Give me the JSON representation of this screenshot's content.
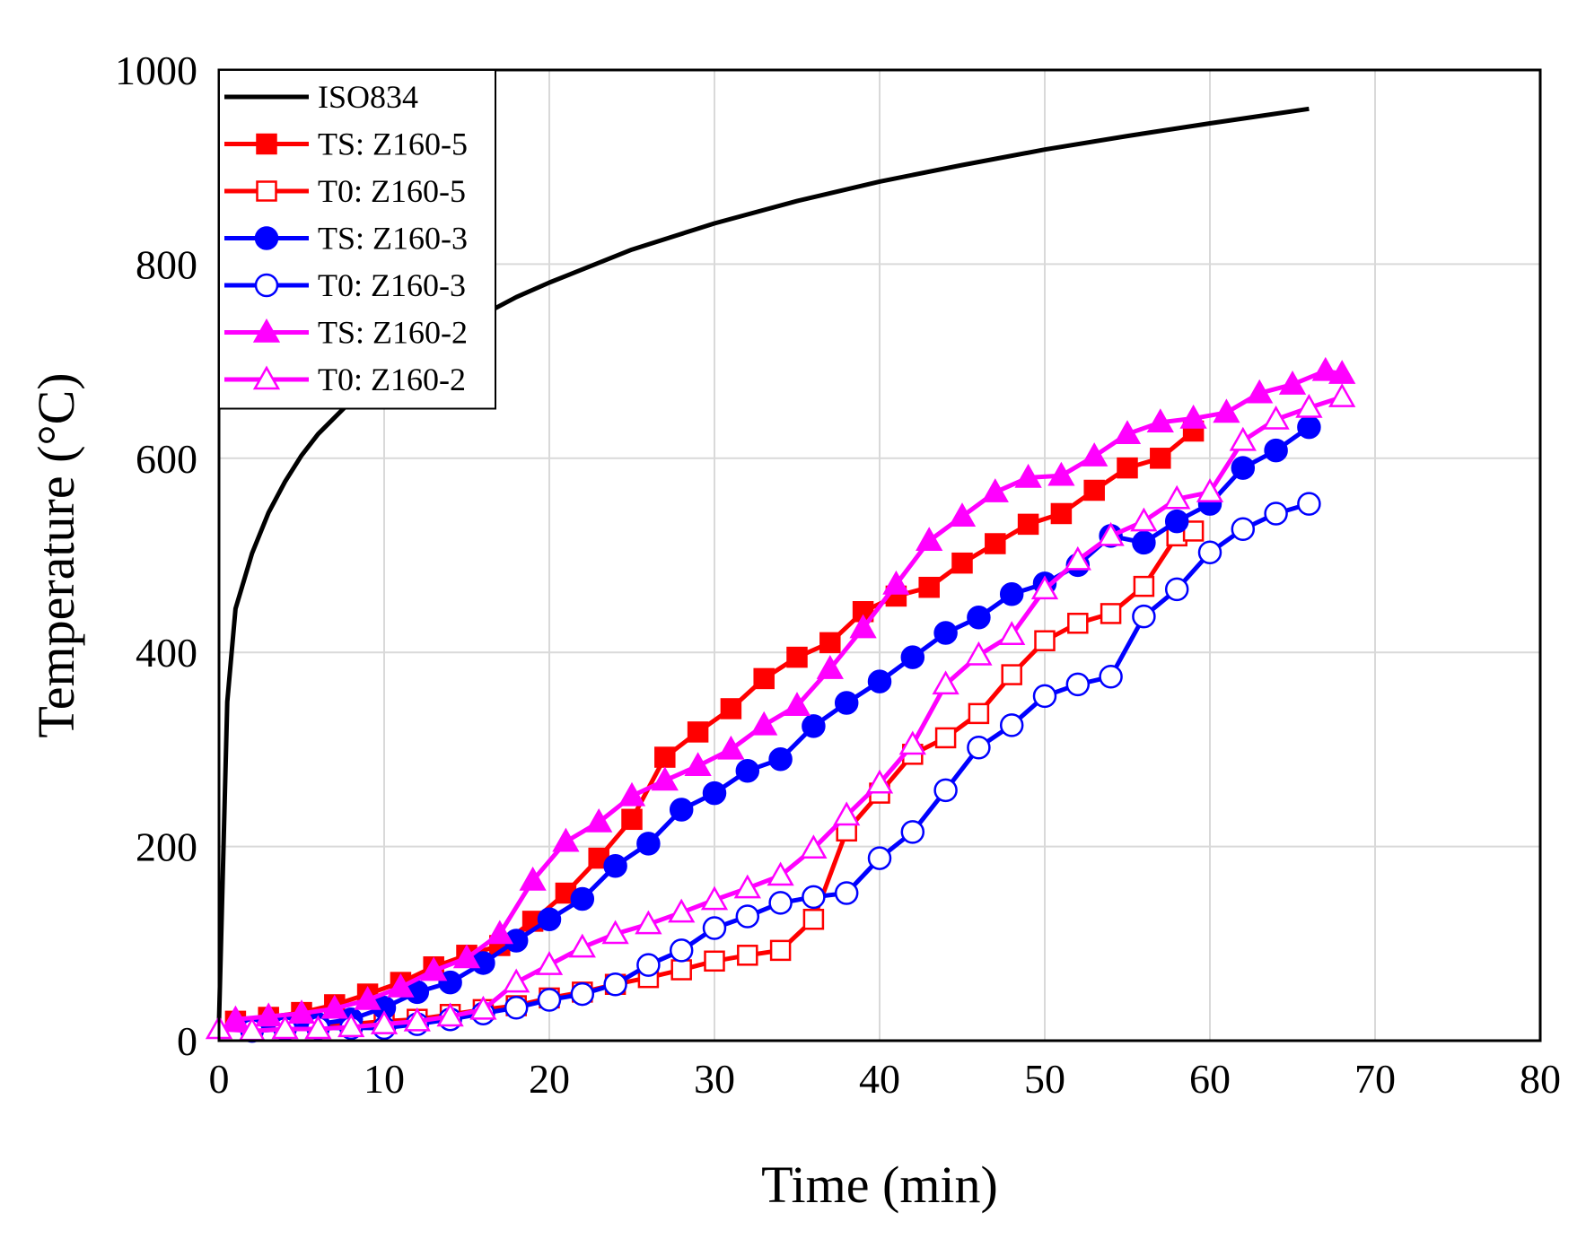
{
  "chart_data": {
    "type": "line",
    "title": "",
    "xlabel": "Time (min)",
    "ylabel": "Temperature (°C)",
    "xlim": [
      0,
      80
    ],
    "ylim": [
      0,
      1000
    ],
    "xticks": [
      0,
      10,
      20,
      30,
      40,
      50,
      60,
      70,
      80
    ],
    "yticks": [
      0,
      200,
      400,
      600,
      800,
      1000
    ],
    "xtick_labels": [
      "0",
      "10",
      "20",
      "30",
      "40",
      "50",
      "60",
      "70",
      "80"
    ],
    "ytick_labels": [
      "0",
      "200",
      "400",
      "600",
      "800",
      "1000"
    ],
    "grid": true,
    "legend_position": "top-left",
    "series": [
      {
        "name": "ISO834",
        "color": "#000000",
        "marker": "none",
        "points": [
          [
            0,
            20
          ],
          [
            0.5,
            349
          ],
          [
            1,
            445
          ],
          [
            2,
            502
          ],
          [
            3,
            544
          ],
          [
            4,
            576
          ],
          [
            5,
            603
          ],
          [
            6,
            625
          ],
          [
            8,
            659
          ],
          [
            10,
            678
          ],
          [
            12,
            705
          ],
          [
            15,
            739
          ],
          [
            18,
            766
          ],
          [
            20,
            781
          ],
          [
            25,
            815
          ],
          [
            30,
            842
          ],
          [
            35,
            865
          ],
          [
            40,
            885
          ],
          [
            45,
            902
          ],
          [
            50,
            918
          ],
          [
            55,
            932
          ],
          [
            60,
            945
          ],
          [
            66,
            960
          ]
        ]
      },
      {
        "name": "TS: Z160-5",
        "color": "#ff0000",
        "marker": "square-filled",
        "points": [
          [
            1,
            20
          ],
          [
            3,
            24
          ],
          [
            5,
            29
          ],
          [
            7,
            37
          ],
          [
            9,
            48
          ],
          [
            11,
            60
          ],
          [
            13,
            76
          ],
          [
            15,
            88
          ],
          [
            17,
            98
          ],
          [
            19,
            123
          ],
          [
            21,
            152
          ],
          [
            23,
            188
          ],
          [
            25,
            228
          ],
          [
            27,
            292
          ],
          [
            29,
            318
          ],
          [
            31,
            342
          ],
          [
            33,
            373
          ],
          [
            35,
            395
          ],
          [
            37,
            410
          ],
          [
            39,
            442
          ],
          [
            41,
            458
          ],
          [
            43,
            467
          ],
          [
            45,
            492
          ],
          [
            47,
            512
          ],
          [
            49,
            532
          ],
          [
            51,
            543
          ],
          [
            53,
            567
          ],
          [
            55,
            590
          ],
          [
            57,
            600
          ],
          [
            59,
            628
          ]
        ]
      },
      {
        "name": "T0: Z160-5",
        "color": "#ff0000",
        "marker": "square-open",
        "points": [
          [
            2,
            12
          ],
          [
            4,
            14
          ],
          [
            6,
            15
          ],
          [
            8,
            17
          ],
          [
            10,
            20
          ],
          [
            12,
            22
          ],
          [
            14,
            27
          ],
          [
            16,
            32
          ],
          [
            18,
            36
          ],
          [
            20,
            44
          ],
          [
            22,
            50
          ],
          [
            24,
            58
          ],
          [
            26,
            65
          ],
          [
            28,
            73
          ],
          [
            30,
            82
          ],
          [
            32,
            88
          ],
          [
            34,
            93
          ],
          [
            36,
            125
          ],
          [
            38,
            216
          ],
          [
            40,
            255
          ],
          [
            42,
            295
          ],
          [
            44,
            312
          ],
          [
            46,
            337
          ],
          [
            48,
            377
          ],
          [
            50,
            412
          ],
          [
            52,
            430
          ],
          [
            54,
            440
          ],
          [
            56,
            468
          ],
          [
            58,
            520
          ],
          [
            59,
            525
          ]
        ]
      },
      {
        "name": "TS: Z160-3",
        "color": "#0000ff",
        "marker": "circle-filled",
        "points": [
          [
            2,
            12
          ],
          [
            4,
            14
          ],
          [
            6,
            17
          ],
          [
            8,
            22
          ],
          [
            10,
            34
          ],
          [
            12,
            50
          ],
          [
            14,
            60
          ],
          [
            16,
            80
          ],
          [
            18,
            103
          ],
          [
            20,
            125
          ],
          [
            22,
            146
          ],
          [
            24,
            180
          ],
          [
            26,
            203
          ],
          [
            28,
            238
          ],
          [
            30,
            255
          ],
          [
            32,
            278
          ],
          [
            34,
            290
          ],
          [
            36,
            324
          ],
          [
            38,
            348
          ],
          [
            40,
            370
          ],
          [
            42,
            395
          ],
          [
            44,
            420
          ],
          [
            46,
            436
          ],
          [
            48,
            460
          ],
          [
            50,
            471
          ],
          [
            52,
            490
          ],
          [
            54,
            520
          ],
          [
            56,
            513
          ],
          [
            58,
            535
          ],
          [
            60,
            553
          ],
          [
            62,
            590
          ],
          [
            64,
            608
          ],
          [
            66,
            632
          ]
        ]
      },
      {
        "name": "T0: Z160-3",
        "color": "#0000ff",
        "marker": "circle-open",
        "points": [
          [
            2,
            10
          ],
          [
            4,
            12
          ],
          [
            6,
            13
          ],
          [
            8,
            13
          ],
          [
            10,
            13
          ],
          [
            12,
            17
          ],
          [
            14,
            22
          ],
          [
            16,
            28
          ],
          [
            18,
            34
          ],
          [
            20,
            42
          ],
          [
            22,
            48
          ],
          [
            24,
            58
          ],
          [
            26,
            78
          ],
          [
            28,
            93
          ],
          [
            30,
            116
          ],
          [
            32,
            128
          ],
          [
            34,
            142
          ],
          [
            36,
            148
          ],
          [
            38,
            152
          ],
          [
            40,
            188
          ],
          [
            42,
            215
          ],
          [
            44,
            258
          ],
          [
            46,
            302
          ],
          [
            48,
            325
          ],
          [
            50,
            355
          ],
          [
            52,
            367
          ],
          [
            54,
            375
          ],
          [
            56,
            437
          ],
          [
            58,
            465
          ],
          [
            60,
            503
          ],
          [
            62,
            527
          ],
          [
            64,
            543
          ],
          [
            66,
            553
          ]
        ]
      },
      {
        "name": "TS: Z160-2",
        "color": "#ff00ff",
        "marker": "triangle-filled",
        "points": [
          [
            1,
            22
          ],
          [
            3,
            25
          ],
          [
            5,
            28
          ],
          [
            7,
            33
          ],
          [
            9,
            42
          ],
          [
            11,
            55
          ],
          [
            13,
            72
          ],
          [
            15,
            85
          ],
          [
            17,
            110
          ],
          [
            19,
            165
          ],
          [
            21,
            205
          ],
          [
            23,
            225
          ],
          [
            25,
            252
          ],
          [
            27,
            268
          ],
          [
            29,
            283
          ],
          [
            31,
            300
          ],
          [
            33,
            325
          ],
          [
            35,
            345
          ],
          [
            37,
            383
          ],
          [
            39,
            425
          ],
          [
            41,
            470
          ],
          [
            43,
            515
          ],
          [
            45,
            540
          ],
          [
            47,
            565
          ],
          [
            49,
            580
          ],
          [
            51,
            582
          ],
          [
            53,
            602
          ],
          [
            55,
            625
          ],
          [
            57,
            637
          ],
          [
            59,
            641
          ],
          [
            61,
            647
          ],
          [
            63,
            667
          ],
          [
            65,
            676
          ],
          [
            67,
            690
          ],
          [
            68,
            687
          ]
        ]
      },
      {
        "name": "T0: Z160-2",
        "color": "#ff00ff",
        "marker": "triangle-open",
        "points": [
          [
            0,
            12
          ],
          [
            2,
            10
          ],
          [
            4,
            12
          ],
          [
            6,
            12
          ],
          [
            8,
            14
          ],
          [
            10,
            17
          ],
          [
            12,
            20
          ],
          [
            14,
            25
          ],
          [
            16,
            32
          ],
          [
            18,
            60
          ],
          [
            20,
            78
          ],
          [
            22,
            96
          ],
          [
            24,
            110
          ],
          [
            26,
            120
          ],
          [
            28,
            132
          ],
          [
            30,
            145
          ],
          [
            32,
            157
          ],
          [
            34,
            170
          ],
          [
            36,
            198
          ],
          [
            38,
            232
          ],
          [
            40,
            265
          ],
          [
            42,
            305
          ],
          [
            44,
            367
          ],
          [
            46,
            397
          ],
          [
            48,
            418
          ],
          [
            50,
            465
          ],
          [
            52,
            495
          ],
          [
            54,
            520
          ],
          [
            56,
            535
          ],
          [
            58,
            558
          ],
          [
            60,
            565
          ],
          [
            62,
            618
          ],
          [
            64,
            640
          ],
          [
            66,
            652
          ],
          [
            68,
            663
          ]
        ]
      }
    ]
  }
}
